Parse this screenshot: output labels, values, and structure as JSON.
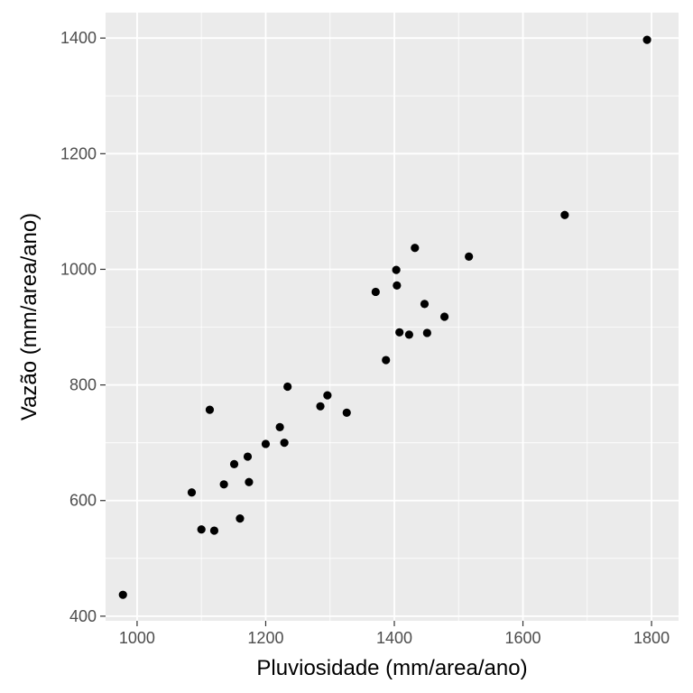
{
  "chart_data": {
    "type": "scatter",
    "xlabel": "Pluviosidade (mm/area/ano)",
    "ylabel": "Vazão (mm/area/ano)",
    "xlim": [
      951,
      1842
    ],
    "ylim": [
      392,
      1444
    ],
    "x_ticks": [
      1000,
      1200,
      1400,
      1600,
      1800
    ],
    "y_ticks": [
      400,
      600,
      800,
      1000,
      1200,
      1400
    ],
    "x_tick_labels": [
      "1000",
      "1200",
      "1400",
      "1600",
      "1800"
    ],
    "y_tick_labels": [
      "400",
      "600",
      "800",
      "1000",
      "1200",
      "1400"
    ],
    "grid": true,
    "colors": {
      "panel": "#ebebeb",
      "grid": "#ffffff",
      "point": "#000000",
      "tick_text": "#4d4d4d",
      "tick_mark": "#333333"
    },
    "points": [
      {
        "x": 978,
        "y": 437
      },
      {
        "x": 1085,
        "y": 614
      },
      {
        "x": 1100,
        "y": 550
      },
      {
        "x": 1113,
        "y": 757
      },
      {
        "x": 1120,
        "y": 548
      },
      {
        "x": 1135,
        "y": 628
      },
      {
        "x": 1151,
        "y": 663
      },
      {
        "x": 1160,
        "y": 569
      },
      {
        "x": 1172,
        "y": 676
      },
      {
        "x": 1174,
        "y": 632
      },
      {
        "x": 1200,
        "y": 698
      },
      {
        "x": 1222,
        "y": 727
      },
      {
        "x": 1229,
        "y": 700
      },
      {
        "x": 1234,
        "y": 797
      },
      {
        "x": 1285,
        "y": 763
      },
      {
        "x": 1296,
        "y": 782
      },
      {
        "x": 1326,
        "y": 752
      },
      {
        "x": 1371,
        "y": 961
      },
      {
        "x": 1387,
        "y": 843
      },
      {
        "x": 1403,
        "y": 999
      },
      {
        "x": 1404,
        "y": 972
      },
      {
        "x": 1408,
        "y": 891
      },
      {
        "x": 1423,
        "y": 887
      },
      {
        "x": 1432,
        "y": 1037
      },
      {
        "x": 1447,
        "y": 940
      },
      {
        "x": 1451,
        "y": 890
      },
      {
        "x": 1478,
        "y": 918
      },
      {
        "x": 1516,
        "y": 1022
      },
      {
        "x": 1665,
        "y": 1094
      },
      {
        "x": 1793,
        "y": 1397
      }
    ]
  }
}
